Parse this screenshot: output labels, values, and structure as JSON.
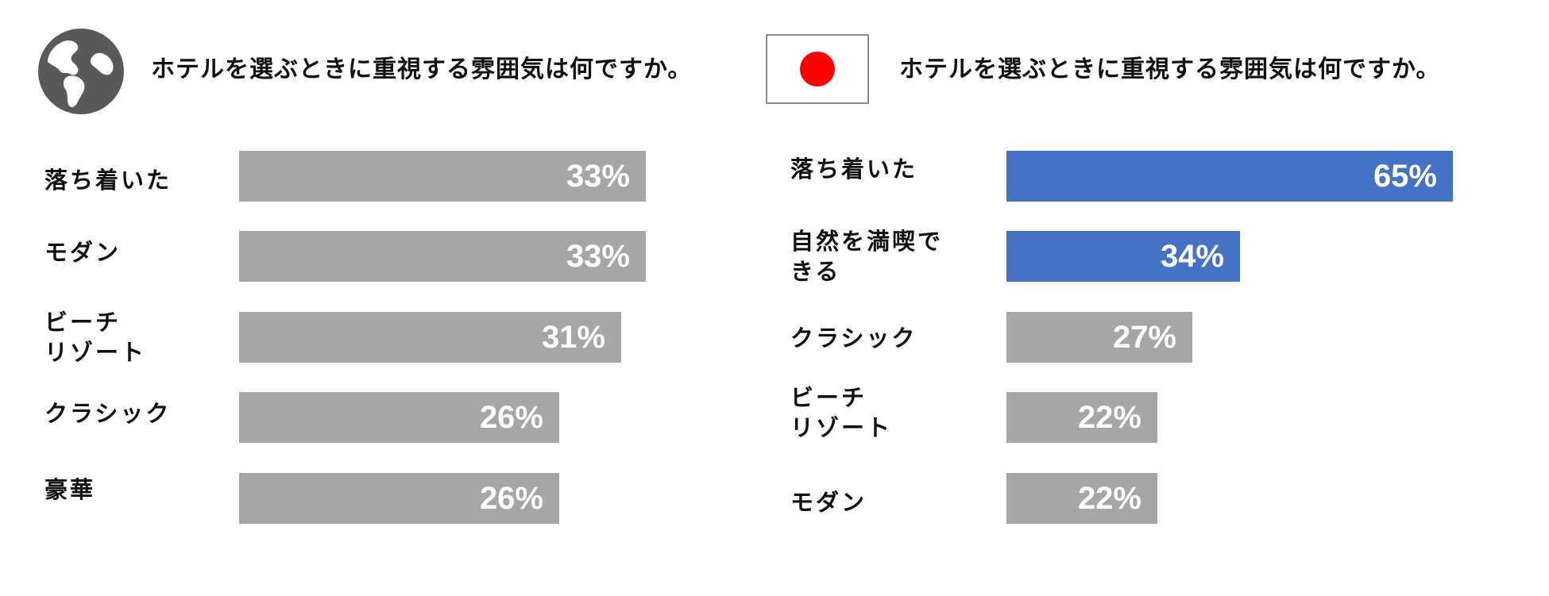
{
  "colors": {
    "bar_gray": "#a6a6a6",
    "bar_blue": "#4472c4",
    "icon_gray": "#595959",
    "flag_red": "#ff0000"
  },
  "panels": [
    {
      "icon": "globe-icon",
      "question": "ホテルを選ぶときに重視する雰囲気は何ですか。"
    },
    {
      "icon": "japan-flag-icon",
      "question": "ホテルを選ぶときに重視する雰囲気は何ですか。"
    }
  ],
  "chart_data": [
    {
      "type": "bar",
      "orientation": "horizontal",
      "categories": [
        "落ち着いた",
        "モダン",
        "ビーチ\nリゾート",
        "クラシック",
        "豪華"
      ],
      "values": [
        33,
        33,
        31,
        26,
        26
      ],
      "value_labels": [
        "33%",
        "33%",
        "31%",
        "26%",
        "26%"
      ],
      "highlight": [
        false,
        false,
        false,
        false,
        false
      ],
      "xlim": [
        0,
        100
      ]
    },
    {
      "type": "bar",
      "orientation": "horizontal",
      "categories": [
        "落ち着いた",
        "自然を満喫で\nきる",
        "クラシック",
        "ビーチ\nリゾート",
        "モダン"
      ],
      "values": [
        65,
        34,
        27,
        22,
        22
      ],
      "value_labels": [
        "65%",
        "34%",
        "27%",
        "22%",
        "22%"
      ],
      "highlight": [
        true,
        true,
        false,
        false,
        false
      ],
      "xlim": [
        0,
        100
      ]
    }
  ]
}
